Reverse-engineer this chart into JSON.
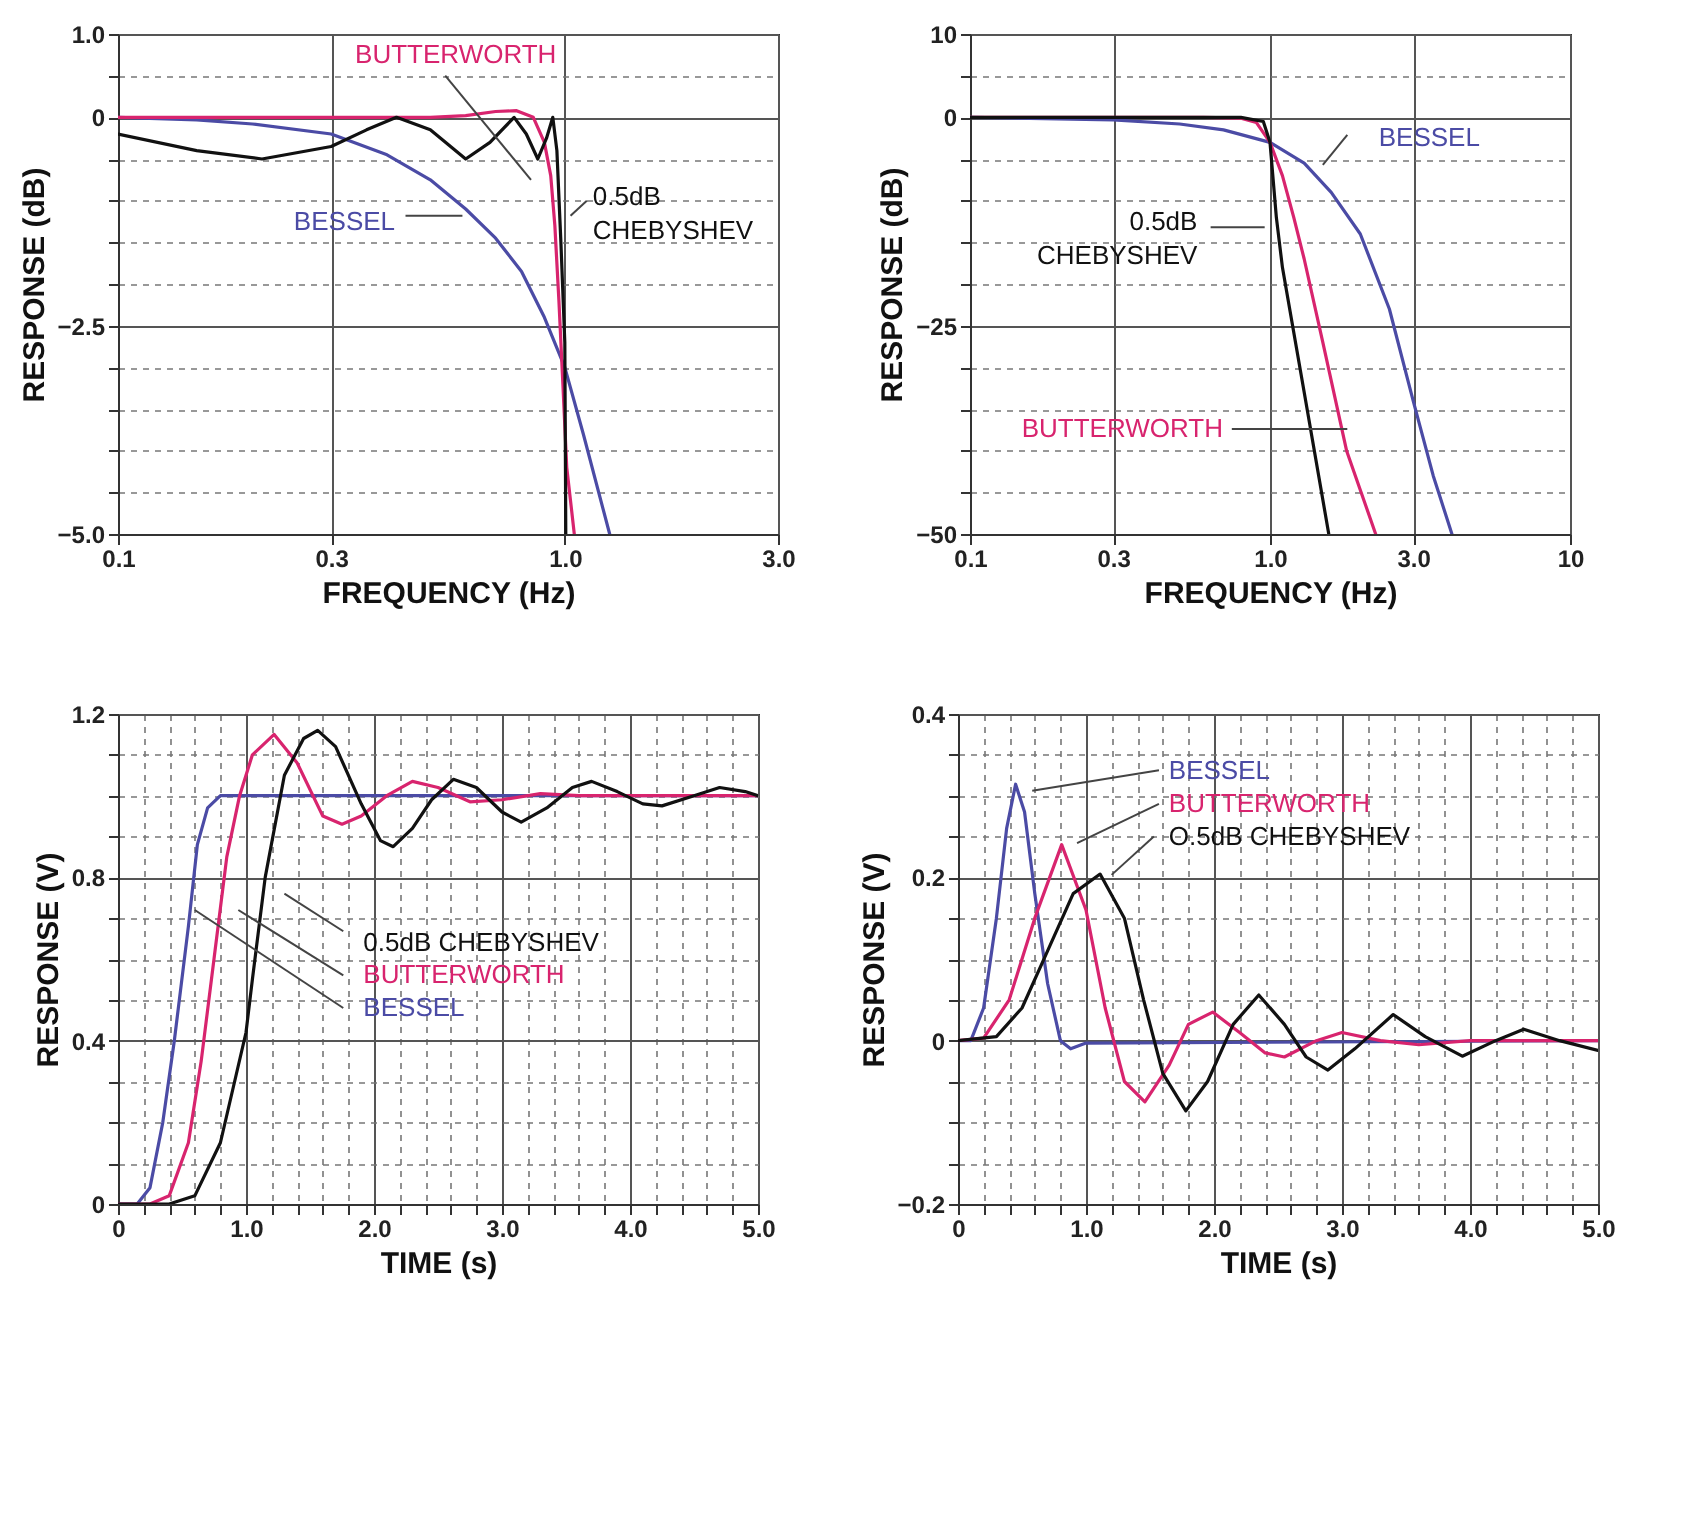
{
  "chart_data": [
    {
      "type": "line",
      "log": "x",
      "grid": true,
      "xlabel": "FREQUENCY (Hz)",
      "ylabel": "RESPONSE (dB)",
      "xlim": [
        0.1,
        3
      ],
      "ylim": [
        -5,
        1
      ],
      "xticks": [
        0.1,
        0.3,
        {
          "value": 1,
          "label": "1.0"
        },
        {
          "value": 3,
          "label": "3.0"
        }
      ],
      "yticks": [
        {
          "value": 1,
          "label": "1.0"
        },
        {
          "value": 0.5,
          "label": null
        },
        0,
        {
          "value": -0.5,
          "label": null
        },
        {
          "value": -1,
          "label": null
        },
        {
          "value": -1.5,
          "label": null
        },
        {
          "value": -2,
          "label": null
        },
        {
          "value": -2.5,
          "label": "−2.5"
        },
        {
          "value": -3,
          "label": null
        },
        {
          "value": -3.5,
          "label": null
        },
        {
          "value": -4,
          "label": null
        },
        {
          "value": -4.5,
          "label": null
        },
        {
          "value": -5,
          "label": "−5.0"
        }
      ],
      "series": [
        {
          "name": "BESSEL",
          "color": "#4b4ba5",
          "x": [
            0.1,
            0.15,
            0.2,
            0.3,
            0.4,
            0.5,
            0.6,
            0.7,
            0.8,
            0.9,
            1.0,
            1.1,
            1.26
          ],
          "values": [
            0,
            -0.03,
            -0.08,
            -0.2,
            -0.45,
            -0.75,
            -1.1,
            -1.45,
            -1.85,
            -2.4,
            -3.0,
            -3.8,
            -5.0
          ]
        },
        {
          "name": "BUTTERWORTH",
          "color": "#d8246e",
          "x": [
            0.1,
            0.3,
            0.5,
            0.6,
            0.7,
            0.78,
            0.85,
            0.9,
            0.93,
            0.95,
            0.97,
            0.99,
            1.01,
            1.05
          ],
          "values": [
            0,
            0,
            0,
            0.02,
            0.07,
            0.08,
            0,
            -0.3,
            -0.7,
            -1.3,
            -2.2,
            -3.2,
            -4.2,
            -5.0
          ]
        },
        {
          "name": "0.5dB CHEBYSHEV",
          "color": "#111111",
          "x": [
            0.1,
            0.15,
            0.21,
            0.3,
            0.36,
            0.42,
            0.5,
            0.6,
            0.68,
            0.77,
            0.82,
            0.87,
            0.91,
            0.94,
            0.96,
            0.98,
            1.0,
            1.005
          ],
          "values": [
            -0.2,
            -0.4,
            -0.5,
            -0.35,
            -0.15,
            0,
            -0.15,
            -0.5,
            -0.3,
            0,
            -0.2,
            -0.5,
            -0.25,
            0,
            -0.4,
            -1.5,
            -2.7,
            -5.0
          ]
        }
      ]
    },
    {
      "type": "line",
      "log": "x",
      "grid": true,
      "xlabel": "FREQUENCY (Hz)",
      "ylabel": "RESPONSE (dB)",
      "xlim": [
        0.1,
        10
      ],
      "ylim": [
        -50,
        10
      ],
      "xticks": [
        0.1,
        0.3,
        {
          "value": 1,
          "label": "1.0"
        },
        {
          "value": 3,
          "label": "3.0"
        },
        10
      ],
      "yticks": [
        10,
        {
          "value": 5,
          "label": null
        },
        0,
        {
          "value": -5,
          "label": null
        },
        {
          "value": -10,
          "label": null
        },
        {
          "value": -15,
          "label": null
        },
        {
          "value": -20,
          "label": null
        },
        {
          "value": -25,
          "label": "−25"
        },
        {
          "value": -30,
          "label": null
        },
        {
          "value": -35,
          "label": null
        },
        {
          "value": -40,
          "label": null
        },
        {
          "value": -45,
          "label": null
        },
        {
          "value": -50,
          "label": "−50"
        }
      ],
      "series": [
        {
          "name": "BESSEL",
          "color": "#4b4ba5",
          "x": [
            0.1,
            0.3,
            0.5,
            0.7,
            1.0,
            1.3,
            1.6,
            2.0,
            2.5,
            3.0,
            3.5,
            4.04
          ],
          "values": [
            0,
            -0.3,
            -0.8,
            -1.5,
            -3,
            -5.5,
            -9,
            -14,
            -23,
            -34,
            -43,
            -50
          ]
        },
        {
          "name": "BUTTERWORTH",
          "color": "#d8246e",
          "x": [
            0.1,
            0.6,
            0.8,
            0.9,
            1.0,
            1.1,
            1.2,
            1.3,
            1.5,
            1.8,
            2.25
          ],
          "values": [
            0,
            0,
            -0.1,
            -0.6,
            -3,
            -7,
            -12,
            -17,
            -27,
            -40,
            -50
          ]
        },
        {
          "name": "0.5dB CHEBYSHEV",
          "color": "#111111",
          "x": [
            0.1,
            0.5,
            0.8,
            0.95,
            1.0,
            1.05,
            1.1,
            1.3,
            1.57
          ],
          "values": [
            0,
            0,
            0,
            -0.5,
            -3,
            -12,
            -18,
            -33,
            -50
          ]
        }
      ]
    },
    {
      "type": "line",
      "grid": true,
      "xlabel": "TIME (s)",
      "ylabel": "RESPONSE (V)",
      "xlim": [
        0,
        5
      ],
      "ylim": [
        0,
        1.2
      ],
      "xticks": [
        0,
        {
          "value": 0.2,
          "label": null
        },
        {
          "value": 0.4,
          "label": null
        },
        {
          "value": 0.6,
          "label": null
        },
        {
          "value": 0.8,
          "label": null
        },
        {
          "value": 1,
          "label": "1.0"
        },
        {
          "value": 1.2,
          "label": null
        },
        {
          "value": 1.4,
          "label": null
        },
        {
          "value": 1.6,
          "label": null
        },
        {
          "value": 1.8,
          "label": null
        },
        {
          "value": 2,
          "label": "2.0"
        },
        {
          "value": 2.2,
          "label": null
        },
        {
          "value": 2.4,
          "label": null
        },
        {
          "value": 2.6,
          "label": null
        },
        {
          "value": 2.8,
          "label": null
        },
        {
          "value": 3,
          "label": "3.0"
        },
        {
          "value": 3.2,
          "label": null
        },
        {
          "value": 3.4,
          "label": null
        },
        {
          "value": 3.6,
          "label": null
        },
        {
          "value": 3.8,
          "label": null
        },
        {
          "value": 4,
          "label": "4.0"
        },
        {
          "value": 4.2,
          "label": null
        },
        {
          "value": 4.4,
          "label": null
        },
        {
          "value": 4.6,
          "label": null
        },
        {
          "value": 4.8,
          "label": null
        },
        {
          "value": 5,
          "label": "5.0"
        }
      ],
      "yticks": [
        0,
        {
          "value": 0.1,
          "label": null
        },
        {
          "value": 0.2,
          "label": null
        },
        {
          "value": 0.3,
          "label": null
        },
        0.4,
        {
          "value": 0.5,
          "label": null
        },
        {
          "value": 0.6,
          "label": null
        },
        {
          "value": 0.7,
          "label": null
        },
        0.8,
        {
          "value": 0.9,
          "label": null
        },
        {
          "value": 1,
          "label": null
        },
        {
          "value": 1.1,
          "label": null
        },
        1.2
      ],
      "series": [
        {
          "name": "BESSEL",
          "color": "#4b4ba5",
          "x": [
            0,
            0.15,
            0.25,
            0.35,
            0.44,
            0.55,
            0.62,
            0.7,
            0.8,
            5
          ],
          "values": [
            0,
            0,
            0.04,
            0.2,
            0.4,
            0.68,
            0.88,
            0.97,
            1.0,
            1.0
          ]
        },
        {
          "name": "BUTTERWORTH",
          "color": "#d8246e",
          "x": [
            0,
            0.25,
            0.4,
            0.55,
            0.65,
            0.75,
            0.85,
            0.95,
            1.05,
            1.22,
            1.4,
            1.6,
            1.75,
            1.9,
            2.1,
            2.3,
            2.5,
            2.75,
            3.0,
            3.3,
            3.6,
            5
          ],
          "values": [
            0,
            0,
            0.02,
            0.15,
            0.35,
            0.6,
            0.85,
            1.0,
            1.1,
            1.15,
            1.08,
            0.95,
            0.93,
            0.95,
            1.0,
            1.035,
            1.02,
            0.985,
            0.99,
            1.005,
            1.0,
            1.0
          ]
        },
        {
          "name": "0.5dB CHEBYSHEV",
          "color": "#111111",
          "x": [
            0,
            0.4,
            0.6,
            0.8,
            1.0,
            1.05,
            1.15,
            1.3,
            1.45,
            1.56,
            1.7,
            1.9,
            2.05,
            2.15,
            2.3,
            2.45,
            2.62,
            2.8,
            3.0,
            3.15,
            3.35,
            3.55,
            3.7,
            3.9,
            4.1,
            4.25,
            4.5,
            4.7,
            4.9,
            5.0
          ],
          "values": [
            0,
            0,
            0.02,
            0.15,
            0.42,
            0.55,
            0.8,
            1.05,
            1.14,
            1.16,
            1.12,
            0.98,
            0.89,
            0.875,
            0.92,
            0.99,
            1.04,
            1.02,
            0.96,
            0.935,
            0.97,
            1.02,
            1.035,
            1.01,
            0.98,
            0.975,
            1.0,
            1.02,
            1.01,
            1.0
          ]
        }
      ]
    },
    {
      "type": "line",
      "grid": true,
      "xlabel": "TIME (s)",
      "ylabel": "RESPONSE (V)",
      "xlim": [
        0,
        5
      ],
      "ylim": [
        -0.2,
        0.4
      ],
      "xticks": [
        0,
        {
          "value": 0.2,
          "label": null
        },
        {
          "value": 0.4,
          "label": null
        },
        {
          "value": 0.6,
          "label": null
        },
        {
          "value": 0.8,
          "label": null
        },
        {
          "value": 1,
          "label": "1.0"
        },
        {
          "value": 1.2,
          "label": null
        },
        {
          "value": 1.4,
          "label": null
        },
        {
          "value": 1.6,
          "label": null
        },
        {
          "value": 1.8,
          "label": null
        },
        {
          "value": 2,
          "label": "2.0"
        },
        {
          "value": 2.2,
          "label": null
        },
        {
          "value": 2.4,
          "label": null
        },
        {
          "value": 2.6,
          "label": null
        },
        {
          "value": 2.8,
          "label": null
        },
        {
          "value": 3,
          "label": "3.0"
        },
        {
          "value": 3.2,
          "label": null
        },
        {
          "value": 3.4,
          "label": null
        },
        {
          "value": 3.6,
          "label": null
        },
        {
          "value": 3.8,
          "label": null
        },
        {
          "value": 4,
          "label": "4.0"
        },
        {
          "value": 4.2,
          "label": null
        },
        {
          "value": 4.4,
          "label": null
        },
        {
          "value": 4.6,
          "label": null
        },
        {
          "value": 4.8,
          "label": null
        },
        {
          "value": 5,
          "label": "5.0"
        }
      ],
      "yticks": [
        {
          "value": -0.2,
          "label": "−0.2"
        },
        {
          "value": -0.15,
          "label": null
        },
        {
          "value": -0.1,
          "label": null
        },
        {
          "value": -0.05,
          "label": null
        },
        0,
        {
          "value": 0.05,
          "label": null
        },
        {
          "value": 0.1,
          "label": null
        },
        {
          "value": 0.15,
          "label": null
        },
        0.2,
        {
          "value": 0.25,
          "label": null
        },
        {
          "value": 0.3,
          "label": null
        },
        {
          "value": 0.35,
          "label": null
        },
        0.4
      ],
      "series": [
        {
          "name": "BESSEL",
          "color": "#4b4ba5",
          "x": [
            0,
            0.1,
            0.2,
            0.3,
            0.38,
            0.45,
            0.52,
            0.6,
            0.7,
            0.8,
            0.88,
            1.0,
            5
          ],
          "values": [
            0,
            0,
            0.04,
            0.15,
            0.26,
            0.314,
            0.28,
            0.18,
            0.07,
            0,
            -0.01,
            -0.003,
            0
          ]
        },
        {
          "name": "BUTTERWORTH",
          "color": "#d8246e",
          "x": [
            0,
            0.2,
            0.4,
            0.6,
            0.81,
            1.0,
            1.15,
            1.3,
            1.46,
            1.65,
            1.8,
            1.99,
            2.2,
            2.4,
            2.55,
            2.8,
            3.0,
            3.3,
            3.6,
            4.0,
            5.0
          ],
          "values": [
            0,
            0.003,
            0.05,
            0.15,
            0.24,
            0.16,
            0.04,
            -0.05,
            -0.075,
            -0.03,
            0.02,
            0.035,
            0.01,
            -0.015,
            -0.02,
            0,
            0.01,
            0,
            -0.005,
            0,
            0
          ]
        },
        {
          "name": "O.5dB CHEBYSHEV",
          "color": "#111111",
          "x": [
            0,
            0.3,
            0.5,
            0.7,
            0.9,
            1.11,
            1.3,
            1.45,
            1.6,
            1.78,
            1.95,
            2.15,
            2.35,
            2.55,
            2.72,
            2.89,
            3.1,
            3.4,
            3.65,
            3.94,
            4.2,
            4.42,
            4.7,
            5.0
          ],
          "values": [
            0,
            0.005,
            0.04,
            0.11,
            0.18,
            0.204,
            0.15,
            0.05,
            -0.04,
            -0.086,
            -0.05,
            0.02,
            0.056,
            0.02,
            -0.02,
            -0.036,
            -0.01,
            0.032,
            0.005,
            -0.019,
            0,
            0.014,
            0,
            -0.012
          ]
        }
      ]
    }
  ]
}
